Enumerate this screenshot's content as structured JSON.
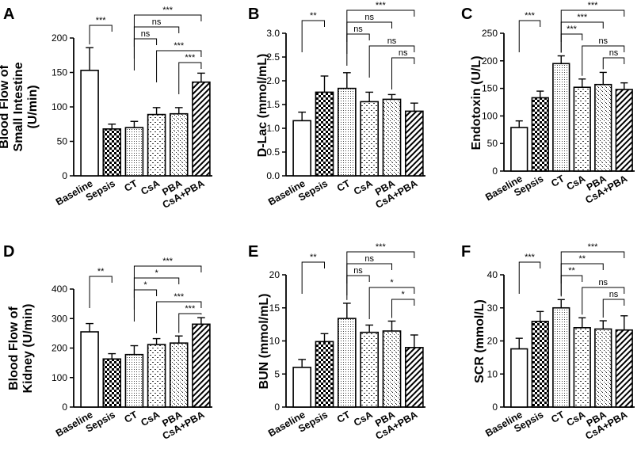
{
  "chart_data": [
    {
      "panel": "A",
      "type": "bar",
      "ylabel": [
        "Blood Flow of",
        "Small Intestine",
        "(U/min)"
      ],
      "ylim": [
        0,
        200
      ],
      "ticks": [
        0,
        50,
        100,
        150,
        200
      ],
      "categories": [
        "Baseline",
        "Sepsis",
        "CT",
        "CsA",
        "PBA",
        "CsA+PBA"
      ],
      "values": [
        153,
        68,
        70,
        89,
        90,
        136
      ],
      "errors": [
        33,
        7,
        9,
        10,
        9,
        13
      ],
      "comparisons": [
        {
          "a": 0,
          "b": 1,
          "label": "***"
        },
        {
          "a": 2,
          "b": 5,
          "label": "***"
        },
        {
          "a": 2,
          "b": 4,
          "label": "ns"
        },
        {
          "a": 2,
          "b": 3,
          "label": "ns"
        },
        {
          "a": 3,
          "b": 5,
          "label": "***"
        },
        {
          "a": 4,
          "b": 5,
          "label": "***"
        }
      ]
    },
    {
      "panel": "B",
      "type": "bar",
      "ylabel": [
        "D-Lac (mmol/mL)"
      ],
      "ylim": [
        0,
        3.0
      ],
      "ticks": [
        "0.0",
        "0.5",
        "1.0",
        "1.5",
        "2.0",
        "2.5",
        "3.0"
      ],
      "categories": [
        "Baseline",
        "Sepsis",
        "CT",
        "CsA",
        "PBA",
        "CsA+PBA"
      ],
      "values": [
        1.16,
        1.76,
        1.84,
        1.56,
        1.61,
        1.36
      ],
      "errors": [
        0.18,
        0.34,
        0.33,
        0.2,
        0.1,
        0.17
      ],
      "comparisons": [
        {
          "a": 0,
          "b": 1,
          "label": "**"
        },
        {
          "a": 2,
          "b": 5,
          "label": "***"
        },
        {
          "a": 2,
          "b": 4,
          "label": "ns"
        },
        {
          "a": 2,
          "b": 3,
          "label": "ns"
        },
        {
          "a": 3,
          "b": 5,
          "label": "ns"
        },
        {
          "a": 4,
          "b": 5,
          "label": "ns"
        }
      ]
    },
    {
      "panel": "C",
      "type": "bar",
      "ylabel": [
        "Endotoxin  (U/L)"
      ],
      "ylim": [
        0,
        250
      ],
      "ticks": [
        0,
        50,
        100,
        150,
        200,
        250
      ],
      "categories": [
        "Baseline",
        "Sepsis",
        "CT",
        "CsA",
        "PBA",
        "CsA+PBA"
      ],
      "values": [
        79,
        133,
        195,
        152,
        157,
        148
      ],
      "errors": [
        12,
        12,
        14,
        15,
        22,
        12
      ],
      "comparisons": [
        {
          "a": 0,
          "b": 1,
          "label": "***"
        },
        {
          "a": 2,
          "b": 5,
          "label": "***"
        },
        {
          "a": 2,
          "b": 4,
          "label": "***"
        },
        {
          "a": 2,
          "b": 3,
          "label": "***"
        },
        {
          "a": 3,
          "b": 5,
          "label": "ns"
        },
        {
          "a": 4,
          "b": 5,
          "label": "ns"
        }
      ]
    },
    {
      "panel": "D",
      "type": "bar",
      "ylabel": [
        "Blood Flow of",
        "Kidney (U/min)"
      ],
      "ylim": [
        0,
        400
      ],
      "ticks": [
        0,
        100,
        200,
        300,
        400
      ],
      "categories": [
        "Baseline",
        "Sepsis",
        "CT",
        "CsA",
        "PBA",
        "CsA+PBA"
      ],
      "values": [
        255,
        163,
        178,
        212,
        217,
        281
      ],
      "errors": [
        28,
        18,
        30,
        20,
        24,
        22
      ],
      "comparisons": [
        {
          "a": 0,
          "b": 1,
          "label": "**"
        },
        {
          "a": 2,
          "b": 5,
          "label": "***"
        },
        {
          "a": 2,
          "b": 4,
          "label": "*"
        },
        {
          "a": 2,
          "b": 3,
          "label": "*"
        },
        {
          "a": 3,
          "b": 5,
          "label": "***"
        },
        {
          "a": 4,
          "b": 5,
          "label": "***"
        }
      ]
    },
    {
      "panel": "E",
      "type": "bar",
      "ylabel": [
        "BUN (mmol/mL)"
      ],
      "ylim": [
        0,
        20
      ],
      "ticks": [
        0,
        5,
        10,
        15,
        20
      ],
      "categories": [
        "Baseline",
        "Sepsis",
        "CT",
        "CsA",
        "PBA",
        "CsA+PBA"
      ],
      "values": [
        6.0,
        9.9,
        13.4,
        11.3,
        11.5,
        9.0
      ],
      "errors": [
        1.2,
        1.2,
        2.3,
        1.1,
        1.5,
        1.9
      ],
      "comparisons": [
        {
          "a": 0,
          "b": 1,
          "label": "**"
        },
        {
          "a": 2,
          "b": 5,
          "label": "***"
        },
        {
          "a": 2,
          "b": 4,
          "label": "ns"
        },
        {
          "a": 2,
          "b": 3,
          "label": "ns"
        },
        {
          "a": 3,
          "b": 5,
          "label": "*"
        },
        {
          "a": 4,
          "b": 5,
          "label": "*"
        }
      ]
    },
    {
      "panel": "F",
      "type": "bar",
      "ylabel": [
        "SCR (mmol/L)"
      ],
      "ylim": [
        0,
        40
      ],
      "ticks": [
        0,
        10,
        20,
        30,
        40
      ],
      "categories": [
        "Baseline",
        "Sepsis",
        "CT",
        "CsA",
        "PBA",
        "CsA+PBA"
      ],
      "values": [
        17.6,
        25.9,
        30.0,
        24.0,
        23.6,
        23.3
      ],
      "errors": [
        3.2,
        3.0,
        2.5,
        3.0,
        2.5,
        4.3
      ],
      "comparisons": [
        {
          "a": 0,
          "b": 1,
          "label": "***"
        },
        {
          "a": 2,
          "b": 5,
          "label": "***"
        },
        {
          "a": 2,
          "b": 4,
          "label": "**"
        },
        {
          "a": 2,
          "b": 3,
          "label": "**"
        },
        {
          "a": 3,
          "b": 5,
          "label": "ns"
        },
        {
          "a": 4,
          "b": 5,
          "label": "ns"
        }
      ]
    }
  ]
}
